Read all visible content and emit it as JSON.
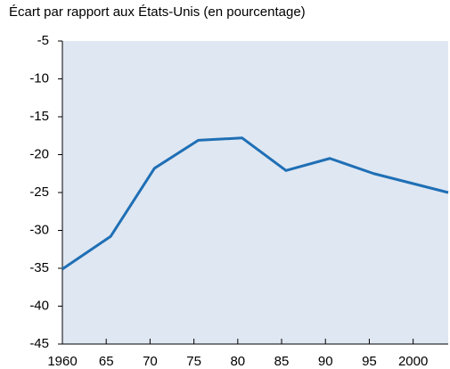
{
  "chart_data": {
    "type": "line",
    "title": "Écart par rapport aux États-Unis (en pourcentage)",
    "x": [
      1960,
      1965.5,
      1970.5,
      1975.5,
      1980.5,
      1985.5,
      1990.5,
      1995.5,
      2004
    ],
    "series": [
      {
        "name": "Écart",
        "color": "#1f6fb5",
        "values": [
          -35.1,
          -30.8,
          -21.8,
          -18.1,
          -17.8,
          -22.1,
          -20.5,
          -22.5,
          -25
        ]
      }
    ],
    "xlim": [
      1960,
      2004
    ],
    "xticks": [
      1960,
      {
        "value": 1965,
        "label": "65"
      },
      {
        "value": 1970,
        "label": "70"
      },
      {
        "value": 1975,
        "label": "75"
      },
      {
        "value": 1980,
        "label": "80"
      },
      {
        "value": 1985,
        "label": "85"
      },
      {
        "value": 1990,
        "label": "90"
      },
      {
        "value": 1995,
        "label": "95"
      },
      2000
    ],
    "ylim": [
      -45,
      -5
    ],
    "yticks": [
      -45,
      -40,
      -35,
      -30,
      -25,
      -20,
      -15,
      -10,
      -5
    ],
    "grid": false
  }
}
